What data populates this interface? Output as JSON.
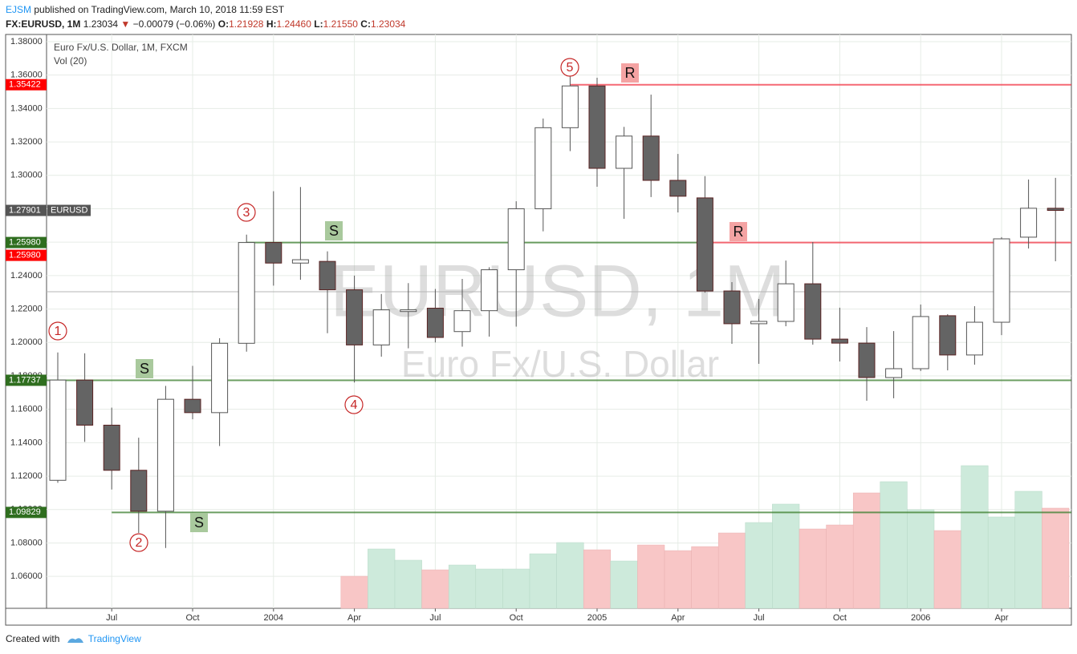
{
  "header": {
    "publisher": "EJSM",
    "published": "published on TradingView.com, March 10, 2018 11:59 EST",
    "symbol": "FX:EURUSD, 1M",
    "last": "1.23034",
    "arrow": "▼",
    "change": "−0.00079 (−0.06%)",
    "o_label": "O:",
    "o": "1.21928",
    "h_label": "H:",
    "h": "1.24460",
    "l_label": "L:",
    "l": "1.21550",
    "c_label": "C:",
    "c": "1.23034"
  },
  "chart_data": {
    "type": "candlestick",
    "title": "Euro Fx/U.S. Dollar, 1M, FXCM",
    "watermark": "EURUSD, 1M",
    "watermark_subtitle": "Euro Fx/U.S. Dollar",
    "categories": [
      null,
      null,
      "Jul",
      null,
      null,
      "Oct",
      null,
      null,
      "2004",
      null,
      null,
      "Apr",
      null,
      null,
      "Jul",
      null,
      null,
      "Oct",
      null,
      null,
      "2005",
      null,
      null,
      "Apr",
      null,
      null,
      "Jul",
      null,
      null,
      "Oct",
      null,
      null,
      "2006",
      null,
      null,
      "Apr",
      null,
      null
    ],
    "open": [
      1.1175,
      1.1775,
      1.1505,
      1.1235,
      1.099,
      1.166,
      1.158,
      1.1995,
      1.2598,
      1.2475,
      1.2485,
      1.2315,
      1.1985,
      1.2185,
      1.2205,
      1.2065,
      1.219,
      1.2435,
      1.28,
      1.3285,
      1.3535,
      1.3042,
      1.3235,
      1.297,
      1.2865,
      1.2308,
      1.2112,
      1.2126,
      1.2351,
      1.202,
      1.1996,
      1.179,
      1.1843,
      1.216,
      1.1925,
      1.2121,
      1.263,
      1.2803
    ],
    "high": [
      1.194,
      1.1935,
      1.161,
      1.143,
      1.174,
      1.186,
      1.2025,
      1.2645,
      1.2905,
      1.293,
      1.2545,
      1.24,
      1.229,
      1.2355,
      1.232,
      1.238,
      1.245,
      1.2845,
      1.334,
      1.3595,
      1.3584,
      1.329,
      1.3483,
      1.3128,
      1.2995,
      1.2361,
      1.226,
      1.249,
      1.2601,
      1.2208,
      1.2092,
      1.2068,
      1.2227,
      1.2169,
      1.2217,
      1.263,
      1.2975,
      1.2985
    ],
    "low": [
      1.116,
      1.1405,
      1.112,
      1.086,
      1.077,
      1.154,
      1.138,
      1.1945,
      1.234,
      1.2375,
      1.2055,
      1.176,
      1.1915,
      1.1965,
      1.2,
      1.1975,
      1.2035,
      1.2095,
      1.2665,
      1.3145,
      1.2932,
      1.274,
      1.287,
      1.2778,
      1.2298,
      1.1992,
      1.1872,
      1.2097,
      1.1987,
      1.1886,
      1.1651,
      1.1666,
      1.1829,
      1.1833,
      1.1867,
      1.2044,
      1.2562,
      1.2486
    ],
    "close": [
      1.1775,
      1.1505,
      1.1235,
      1.099,
      1.166,
      1.158,
      1.1995,
      1.2598,
      1.2475,
      1.2495,
      1.2315,
      1.1985,
      1.2195,
      1.2195,
      1.203,
      1.219,
      1.2435,
      1.28,
      1.3285,
      1.3535,
      1.3042,
      1.3235,
      1.297,
      1.2875,
      1.2308,
      1.2112,
      1.2126,
      1.2351,
      1.202,
      1.1996,
      1.179,
      1.1843,
      1.2155,
      1.1925,
      1.2121,
      1.262,
      1.2803,
      1.279
    ],
    "volume": {
      "name": "Vol (20)",
      "values": [
        0,
        0,
        0,
        0,
        0,
        0,
        0,
        0,
        0,
        0,
        0,
        40,
        74,
        60,
        48,
        54,
        49,
        49,
        68,
        82,
        73,
        59,
        79,
        72,
        77,
        94,
        107,
        130,
        99,
        104,
        144,
        158,
        123,
        97,
        178,
        114,
        146,
        125
      ],
      "up_color": "#cdeadb",
      "down_color": "#f8c6c6"
    },
    "up_color": "#ffffff",
    "down_color": "#646464",
    "up_border": "#555555",
    "down_border": "#5a2323",
    "ylim": [
      1.0409,
      1.3843
    ],
    "yticks": [
      {
        "value": 1.38,
        "label": "1.38000"
      },
      {
        "value": 1.36,
        "label": "1.36000"
      },
      {
        "value": 1.34,
        "label": "1.34000"
      },
      {
        "value": 1.32,
        "label": "1.32000"
      },
      {
        "value": 1.3,
        "label": "1.30000"
      },
      {
        "value": 1.28,
        "label": "1.28000"
      },
      {
        "value": 1.26,
        "label": "1.26000"
      },
      {
        "value": 1.24,
        "label": "1.24000"
      },
      {
        "value": 1.22,
        "label": "1.22000"
      },
      {
        "value": 1.2,
        "label": "1.20000"
      },
      {
        "value": 1.18,
        "label": "1.18000"
      },
      {
        "value": 1.16,
        "label": "1.16000"
      },
      {
        "value": 1.14,
        "label": "1.14000"
      },
      {
        "value": 1.12,
        "label": "1.12000"
      },
      {
        "value": 1.1,
        "label": "1.10000"
      },
      {
        "value": 1.08,
        "label": "1.08000"
      },
      {
        "value": 1.06,
        "label": "1.06000"
      }
    ],
    "grid": true,
    "last_price": 1.23034,
    "levels": [
      {
        "value": 1.35422,
        "label": "1.35422",
        "color": "#f23645"
      },
      {
        "value": 1.2598,
        "label": "1.25980",
        "color": "#3a7d2c"
      },
      {
        "value": 1.2598,
        "label": "1.25980",
        "color": "#f23645"
      },
      {
        "value": 1.17737,
        "label": "1.17737",
        "color": "#3a7d2c"
      },
      {
        "value": 1.09829,
        "label": "1.09829",
        "color": "#3a7d2c"
      }
    ],
    "symbol_tag": {
      "value": 1.27901,
      "label": "1.27901",
      "name": "EURUSD"
    },
    "waves": [
      "1",
      "2",
      "3",
      "4",
      "5"
    ],
    "zones": [
      "S",
      "S",
      "S",
      "R",
      "R"
    ]
  },
  "footer": {
    "text": "Created with",
    "brand": "TradingView"
  }
}
